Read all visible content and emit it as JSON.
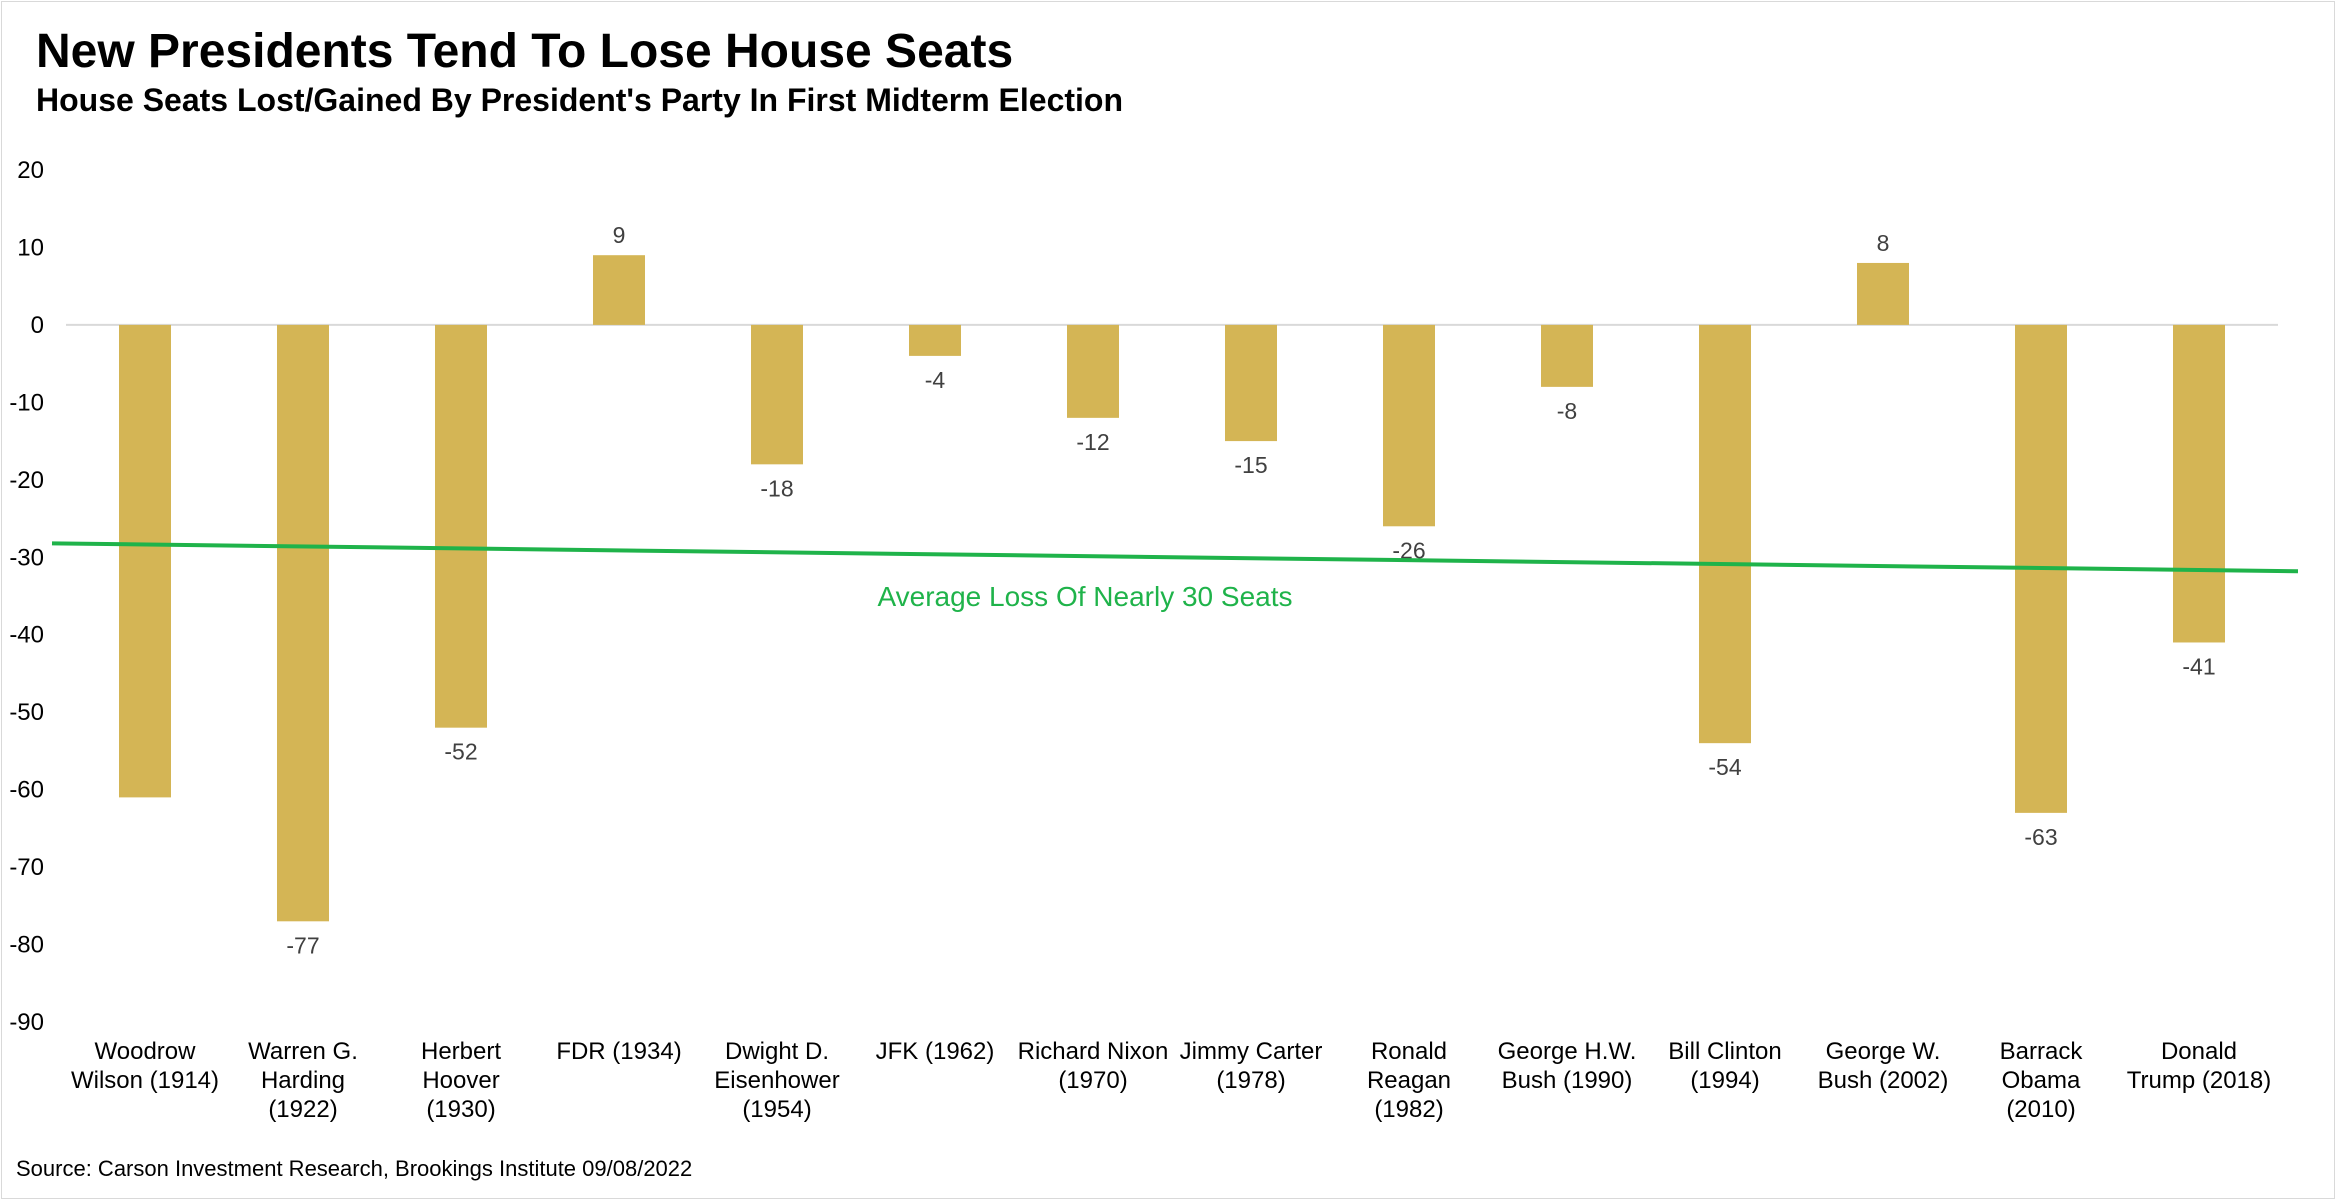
{
  "chart_data": {
    "type": "bar",
    "title": "New Presidents Tend To Lose House Seats",
    "subtitle": "House Seats Lost/Gained By President's Party In First Midterm Election",
    "categories": [
      [
        "Woodrow",
        "Wilson (1914)"
      ],
      [
        "Warren G.",
        "Harding",
        "(1922)"
      ],
      [
        "Herbert",
        "Hoover",
        "(1930)"
      ],
      [
        "FDR (1934)"
      ],
      [
        "Dwight D.",
        "Eisenhower",
        "(1954)"
      ],
      [
        "JFK (1962)"
      ],
      [
        "Richard Nixon",
        "(1970)"
      ],
      [
        "Jimmy Carter",
        "(1978)"
      ],
      [
        "Ronald",
        "Reagan",
        "(1982)"
      ],
      [
        "George H.W.",
        "Bush (1990)"
      ],
      [
        "Bill Clinton",
        "(1994)"
      ],
      [
        "George W.",
        "Bush (2002)"
      ],
      [
        "Barrack",
        "Obama",
        "(2010)"
      ],
      [
        "Donald",
        "Trump (2018)"
      ]
    ],
    "values": [
      -61,
      -77,
      -52,
      9,
      -18,
      -4,
      -12,
      -15,
      -26,
      -8,
      -54,
      8,
      -63,
      -41
    ],
    "data_labels": [
      "",
      "-77",
      "-52",
      "9",
      "-18",
      "-4",
      "-12",
      "-15",
      "-26",
      "-8",
      "-54",
      "8",
      "-63",
      "-41"
    ],
    "ylim": [
      -90,
      20
    ],
    "yticks": [
      20,
      10,
      0,
      -10,
      -20,
      -30,
      -40,
      -50,
      -60,
      -70,
      -80,
      -90
    ],
    "xlabel": "",
    "ylabel": "",
    "grid": false,
    "legend": "none",
    "bar_color": "#d4b555",
    "trendline": {
      "start_value": -28.2,
      "end_value": -31.8,
      "color": "#1fb34a",
      "label": "Average Loss Of Nearly 30 Seats"
    }
  },
  "source": "Source: Carson Investment Research, Brookings Institute 09/08/2022"
}
